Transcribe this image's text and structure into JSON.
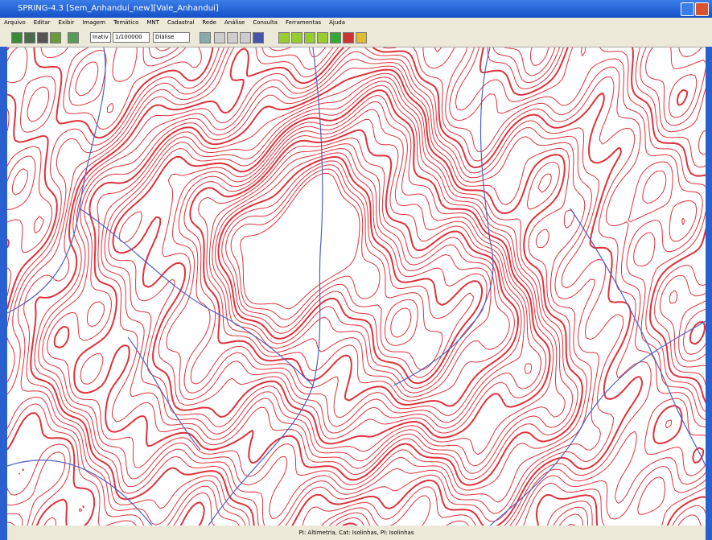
{
  "window": {
    "title": "SPRING-4.3 [Sem_Anhandui_new][Vale_Anhandui]"
  },
  "menu": {
    "items": [
      "Arquivo",
      "Editar",
      "Exibir",
      "Imagem",
      "Temático",
      "MNT",
      "Cadastral",
      "Rede",
      "Análise",
      "Consulta",
      "Ferramentas",
      "Ajuda"
    ]
  },
  "toolbar": {
    "mode": "Inativ",
    "scale": "1/100000",
    "view": "Diálise"
  },
  "status": {
    "text": "PI: Altimetria, Cat: Isolinhas, PI: Isolinhas"
  }
}
